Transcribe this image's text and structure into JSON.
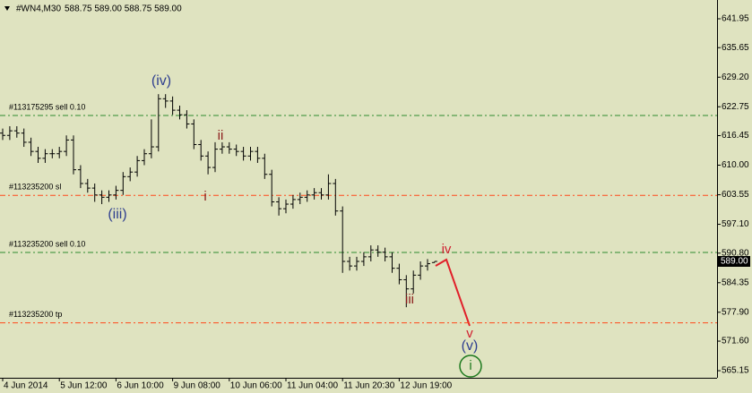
{
  "chart_data": {
    "type": "ohlc",
    "title": "#WN4,M30",
    "subtitle": "588.75 589.00 588.75 589.00",
    "categories": [
      "4 Jun 2014",
      null,
      null,
      null,
      null,
      null,
      null,
      null,
      "5 Jun 12:00",
      null,
      null,
      null,
      null,
      null,
      null,
      null,
      "6 Jun 10:00",
      null,
      null,
      null,
      null,
      null,
      null,
      null,
      "9 Jun 08:00",
      null,
      null,
      null,
      null,
      null,
      null,
      null,
      "10 Jun 06:00",
      null,
      null,
      null,
      null,
      null,
      null,
      null,
      "11 Jun 04:00",
      null,
      null,
      null,
      null,
      null,
      null,
      null,
      "11 Jun 20:30",
      null,
      null,
      null,
      null,
      null,
      null,
      null,
      "12 Jun 19:00",
      null,
      null,
      null,
      null,
      null
    ],
    "open": [
      617,
      616.5,
      617.5,
      617,
      615,
      613,
      611.5,
      612.5,
      612.5,
      613,
      615.5,
      609,
      606,
      605,
      603.5,
      603,
      603.5,
      604.5,
      607.5,
      608.5,
      611,
      612.5,
      614,
      624.5,
      624,
      622,
      621,
      619,
      614.5,
      612,
      609.5,
      613.5,
      614,
      613.5,
      613,
      612,
      613,
      611.5,
      608,
      602,
      600.5,
      601.5,
      602.5,
      603,
      603.5,
      604,
      603.5,
      606,
      600,
      589,
      588,
      589,
      590,
      591.5,
      591,
      590,
      587.5,
      585,
      583,
      586,
      588,
      588.75
    ],
    "high": [
      618,
      618.5,
      618.5,
      618,
      616,
      614,
      613.5,
      613.5,
      614,
      616.5,
      616.5,
      610,
      607,
      606,
      604.5,
      604.5,
      605.5,
      608.5,
      609.5,
      612,
      613.5,
      620,
      625.5,
      625.5,
      625,
      623,
      622,
      620,
      615.5,
      613,
      615,
      615,
      615,
      614.5,
      614,
      614,
      614,
      612.5,
      609,
      603,
      602.5,
      603.5,
      604,
      604.5,
      605,
      605,
      608,
      607,
      601,
      590,
      590,
      591,
      592.5,
      592.5,
      592,
      591,
      588.5,
      586,
      587,
      589,
      589.5,
      589
    ],
    "low": [
      615.5,
      615.5,
      616,
      614,
      612,
      610.5,
      610.5,
      611.5,
      611.5,
      612,
      608,
      605,
      604,
      602,
      601.5,
      602,
      602.5,
      603.5,
      606.5,
      607.5,
      610,
      611.5,
      613,
      622.5,
      621,
      620,
      618,
      613.5,
      611,
      608,
      608.5,
      612.5,
      612.5,
      612,
      611,
      611,
      610.5,
      607,
      601,
      599,
      599.5,
      600.5,
      601.5,
      602,
      602.5,
      602.5,
      602.5,
      599,
      586.5,
      587,
      587,
      588,
      589,
      590,
      589,
      586.5,
      584,
      579,
      582,
      585,
      587,
      588.75
    ],
    "close": [
      616.5,
      617.5,
      617,
      615,
      613,
      611.5,
      612.5,
      612.5,
      613,
      615.5,
      609,
      606,
      605,
      603.5,
      603,
      603.5,
      604.5,
      607.5,
      608.5,
      611,
      612.5,
      614,
      624.5,
      624,
      622,
      621,
      619,
      614.5,
      612,
      609.5,
      613.5,
      614,
      613.5,
      613,
      612,
      613,
      611.5,
      608,
      602,
      600.5,
      601.5,
      602.5,
      603,
      603.5,
      604,
      603.5,
      606,
      600,
      589,
      588,
      589,
      590,
      591.5,
      591,
      590,
      587.5,
      585,
      583,
      586,
      588,
      588.5,
      589
    ],
    "color": "#000000",
    "ylim": [
      563.6,
      646.05
    ],
    "yticks": [
      {
        "value": 641.95,
        "label": "641.95"
      },
      {
        "value": 635.65,
        "label": "635.65"
      },
      {
        "value": 629.2,
        "label": "629.20"
      },
      {
        "value": 622.75,
        "label": "622.75"
      },
      {
        "value": 616.45,
        "label": "616.45"
      },
      {
        "value": 610,
        "label": "610.00"
      },
      {
        "value": 603.55,
        "label": "603.55"
      },
      {
        "value": 597.1,
        "label": "597.10"
      },
      {
        "value": 590.8,
        "label": "590.80"
      },
      {
        "value": 584.35,
        "label": "584.35"
      },
      {
        "value": 577.9,
        "label": "577.90"
      },
      {
        "value": 571.6,
        "label": "571.60"
      },
      {
        "value": 565.15,
        "label": "565.15"
      }
    ],
    "last_price": {
      "value": 589,
      "label": "589.00"
    },
    "levels": [
      {
        "label": "#113175295 sell 0.10",
        "value": 620.85,
        "color": "#2e8b2e"
      },
      {
        "label": "#113235200 sl",
        "value": 603.4,
        "color": "#ff4a1a"
      },
      {
        "label": "#113235200 sell 0.10",
        "value": 590.95,
        "color": "#2e8b2e"
      },
      {
        "label": "#113235200 tp",
        "value": 575.6,
        "color": "#ff4a1a"
      }
    ],
    "annotations": [
      {
        "text": "(iv)",
        "color": "#2f3f8f"
      },
      {
        "text": "(iii)",
        "color": "#2f3f8f"
      },
      {
        "text": "ii",
        "color": "#8b1a1a"
      },
      {
        "text": "i",
        "color": "#8b1a1a"
      },
      {
        "text": "iii",
        "color": "#8b1a1a"
      },
      {
        "text": "iv",
        "color": "#d02030"
      },
      {
        "text": "v",
        "color": "#d02030"
      },
      {
        "text": "(v)",
        "color": "#2f3f8f"
      },
      {
        "text": "i",
        "color": "#1e7a1e"
      }
    ]
  }
}
